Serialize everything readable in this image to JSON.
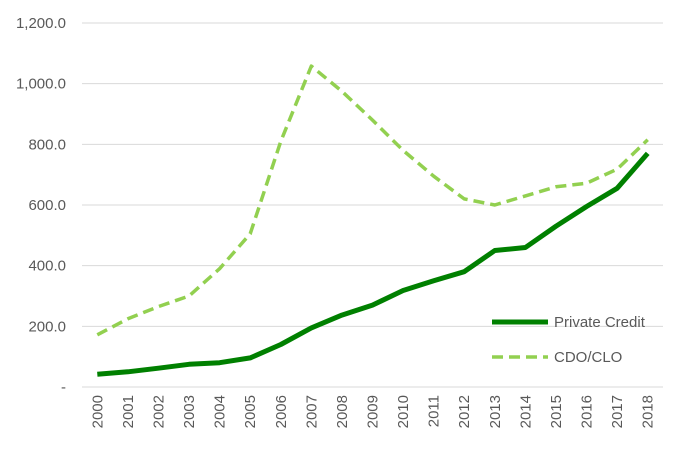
{
  "chart_data": {
    "type": "line",
    "title": "",
    "xlabel": "",
    "ylabel": "",
    "x": [
      "2000",
      "2001",
      "2002",
      "2003",
      "2004",
      "2005",
      "2006",
      "2007",
      "2008",
      "2009",
      "2010",
      "2011",
      "2012",
      "2013",
      "2014",
      "2015",
      "2016",
      "2017",
      "2018"
    ],
    "y_ticks": [
      "-",
      "200.0",
      "400.0",
      "600.0",
      "800.0",
      "1,000.0",
      "1,200.0"
    ],
    "ylim": [
      0,
      1200
    ],
    "grid": true,
    "legend_position": "bottom-right",
    "series": [
      {
        "name": "Private Credit",
        "style": "solid",
        "color": "#008000",
        "values": [
          42,
          50,
          62,
          75,
          80,
          96,
          140,
          195,
          237,
          270,
          318,
          350,
          380,
          450,
          460,
          530,
          595,
          655,
          770
        ]
      },
      {
        "name": "CDO/CLO",
        "style": "dashed",
        "color": "#92d050",
        "values": [
          172,
          225,
          265,
          300,
          390,
          505,
          810,
          1058,
          975,
          880,
          780,
          695,
          620,
          600,
          630,
          660,
          672,
          718,
          815
        ]
      }
    ]
  }
}
